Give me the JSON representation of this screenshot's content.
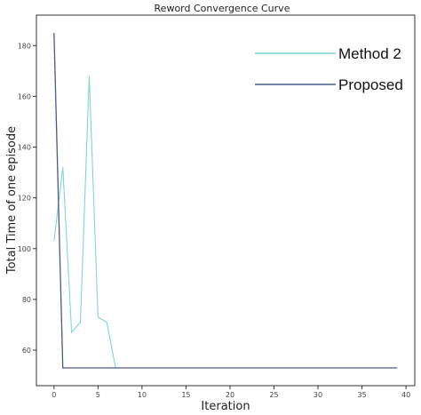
{
  "chart_data": {
    "type": "line",
    "title": "Reword Convergence Curve",
    "xlabel": "Iteration",
    "ylabel": "Total Time of one episode",
    "xlim": [
      -2,
      41
    ],
    "ylim": [
      46,
      192
    ],
    "xticks": [
      0,
      5,
      10,
      15,
      20,
      25,
      30,
      35,
      40
    ],
    "yticks": [
      60,
      80,
      100,
      120,
      140,
      160,
      180
    ],
    "grid": false,
    "legend_position": "top-right",
    "series": [
      {
        "name": "Method 2",
        "color": "#7fd6d4",
        "x": [
          0,
          1,
          2,
          3,
          4,
          5,
          6,
          7,
          8,
          9,
          10,
          11,
          12,
          13,
          14,
          15,
          16,
          17,
          18,
          19,
          20,
          21,
          22,
          23,
          24,
          25,
          26,
          27,
          28,
          29,
          30,
          31,
          32,
          33,
          34,
          35,
          36,
          37,
          38,
          39
        ],
        "values": [
          103,
          132,
          67,
          71,
          168,
          73,
          71,
          53,
          53,
          53,
          53,
          53,
          53,
          53,
          53,
          53,
          53,
          53,
          53,
          53,
          53,
          53,
          53,
          53,
          53,
          53,
          53,
          53,
          53,
          53,
          53,
          53,
          53,
          53,
          53,
          53,
          53,
          53,
          53,
          53
        ]
      },
      {
        "name": "Proposed",
        "color": "#4a5a86",
        "x": [
          0,
          1,
          2,
          3,
          4,
          5,
          6,
          7,
          8,
          9,
          10,
          11,
          12,
          13,
          14,
          15,
          16,
          17,
          18,
          19,
          20,
          21,
          22,
          23,
          24,
          25,
          26,
          27,
          28,
          29,
          30,
          31,
          32,
          33,
          34,
          35,
          36,
          37,
          38,
          39
        ],
        "values": [
          185,
          53,
          53,
          53,
          53,
          53,
          53,
          53,
          53,
          53,
          53,
          53,
          53,
          53,
          53,
          53,
          53,
          53,
          53,
          53,
          53,
          53,
          53,
          53,
          53,
          53,
          53,
          53,
          53,
          53,
          53,
          53,
          53,
          53,
          53,
          53,
          53,
          53,
          53,
          53
        ]
      }
    ]
  }
}
